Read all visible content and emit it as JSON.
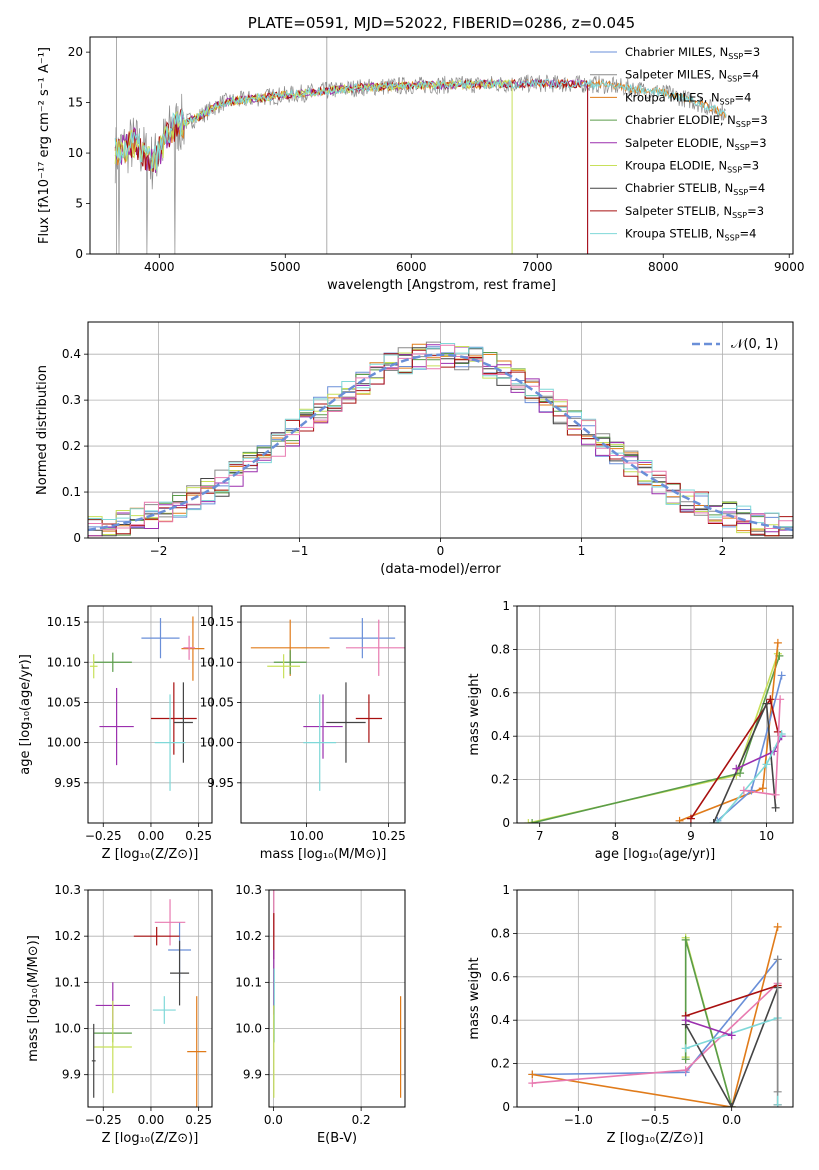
{
  "colors": {
    "chabrier_miles": "#6a8fd8",
    "salpeter_miles": "#8a8a8a",
    "kroupa_miles": "#e07b1a",
    "chabrier_elodie": "#5a9c4a",
    "salpeter_elodie": "#9b2fae",
    "kroupa_elodie": "#c8e05a",
    "chabrier_stelib": "#444444",
    "salpeter_stelib": "#a81010",
    "kroupa_stelib": "#7fd8d8",
    "pink": "#e87ab0"
  },
  "chart_data": [
    {
      "id": "spectrum",
      "type": "line",
      "title": "PLATE=0591, MJD=52022, FIBERID=0286, z=0.045",
      "xlabel": "wavelength [Angstrom, rest frame]",
      "ylabel": "Flux [fλ10⁻¹⁷ erg cm⁻² s⁻¹ A⁻¹]",
      "xlim": [
        3450,
        9030
      ],
      "ylim": [
        0,
        21.5
      ],
      "xticks": [
        4000,
        5000,
        6000,
        7000,
        8000,
        9000
      ],
      "yticks": [
        0,
        5,
        10,
        15,
        20
      ],
      "legend_position": "top-right",
      "legend": [
        {
          "label": "Chabrier MILES, N",
          "sub": "SSP",
          "tail": "=3",
          "color": "chabrier_miles"
        },
        {
          "label": "Salpeter MILES, N",
          "sub": "SSP",
          "tail": "=4",
          "color": "salpeter_miles"
        },
        {
          "label": "Kroupa MILES, N",
          "sub": "SSP",
          "tail": "=4",
          "color": "kroupa_miles"
        },
        {
          "label": "Chabrier ELODIE, N",
          "sub": "SSP",
          "tail": "=3",
          "color": "chabrier_elodie"
        },
        {
          "label": "Salpeter ELODIE, N",
          "sub": "SSP",
          "tail": "=3",
          "color": "salpeter_elodie"
        },
        {
          "label": "Kroupa ELODIE, N",
          "sub": "SSP",
          "tail": "=3",
          "color": "kroupa_elodie"
        },
        {
          "label": "Chabrier STELIB, N",
          "sub": "SSP",
          "tail": "=4",
          "color": "chabrier_stelib"
        },
        {
          "label": "Salpeter STELIB, N",
          "sub": "SSP",
          "tail": "=3",
          "color": "salpeter_stelib"
        },
        {
          "label": "Kroupa STELIB, N",
          "sub": "SSP",
          "tail": "=4",
          "color": "kroupa_stelib"
        }
      ],
      "continuum": [
        [
          3650,
          10
        ],
        [
          3800,
          11
        ],
        [
          3950,
          9
        ],
        [
          4100,
          12.5
        ],
        [
          4300,
          13.5
        ],
        [
          4500,
          15
        ],
        [
          4800,
          15.5
        ],
        [
          5200,
          16
        ],
        [
          5600,
          16.5
        ],
        [
          6000,
          16.7
        ],
        [
          6500,
          16.8
        ],
        [
          7000,
          16.9
        ],
        [
          7500,
          16.8
        ],
        [
          8000,
          16
        ],
        [
          8200,
          15.3
        ],
        [
          8500,
          13.9
        ]
      ],
      "model_ends": {
        "kroupa_elodie": 6800,
        "salpeter_stelib": 7400,
        "salpeter_elodie": 7400
      }
    },
    {
      "id": "residuals",
      "type": "step",
      "xlabel": "(data-model)/error",
      "ylabel": "Normed distribution",
      "xlim": [
        -2.5,
        2.5
      ],
      "ylim": [
        0,
        0.47
      ],
      "xticks": [
        -2,
        -1,
        0,
        1,
        2
      ],
      "yticks": [
        0.0,
        0.1,
        0.2,
        0.3,
        0.4
      ],
      "legend_position": "top-right",
      "legend_label": "𝒩(0, 1)",
      "gaussian": {
        "mu": 0,
        "sigma": 1,
        "color": "chabrier_miles"
      }
    },
    {
      "id": "age_vs_Z",
      "type": "errorbar",
      "xlabel": "Z [log₁₀(Z/Z⊙)]",
      "ylabel": "age  [log₁₀(age/yr)]",
      "xlim": [
        -0.33,
        0.32
      ],
      "ylim": [
        9.9,
        10.17
      ],
      "xticks": [
        -0.25,
        0.0,
        0.25
      ],
      "xticklabels": [
        "−0.25",
        "0.00",
        "0.25"
      ],
      "yticks": [
        9.95,
        10.0,
        10.05,
        10.1,
        10.15
      ],
      "yticklabels": [
        "9.95",
        "10.00",
        "10.05",
        "10.10",
        "10.15"
      ],
      "points": [
        {
          "x": 0.05,
          "y": 10.13,
          "xe": 0.1,
          "ye": 0.025,
          "color": "chabrier_miles"
        },
        {
          "x": 0.22,
          "y": 10.117,
          "xe": 0.06,
          "ye": 0.04,
          "color": "kroupa_miles"
        },
        {
          "x": 0.2,
          "y": 10.118,
          "xe": 0.03,
          "ye": 0.015,
          "color": "pink"
        },
        {
          "x": -0.18,
          "y": 10.02,
          "xe": 0.09,
          "ye": 0.048,
          "color": "salpeter_elodie"
        },
        {
          "x": -0.2,
          "y": 10.1,
          "xe": 0.1,
          "ye": 0.012,
          "color": "chabrier_elodie"
        },
        {
          "x": -0.3,
          "y": 10.095,
          "xe": 0.02,
          "ye": 0.015,
          "color": "kroupa_elodie"
        },
        {
          "x": 0.12,
          "y": 10.03,
          "xe": 0.12,
          "ye": 0.045,
          "color": "salpeter_stelib"
        },
        {
          "x": 0.17,
          "y": 10.025,
          "xe": 0.05,
          "ye": 0.05,
          "color": "chabrier_stelib"
        },
        {
          "x": 0.1,
          "y": 10.0,
          "xe": 0.08,
          "ye": 0.06,
          "color": "kroupa_stelib"
        }
      ]
    },
    {
      "id": "age_vs_mass",
      "type": "errorbar",
      "xlabel": "mass [log₁₀(M/M⊙)]",
      "xlim": [
        9.8,
        10.3
      ],
      "ylim": [
        9.9,
        10.17
      ],
      "xticks": [
        10.0,
        10.25
      ],
      "xticklabels": [
        "10.00",
        "10.25"
      ],
      "yticks": [
        9.95,
        10.0,
        10.05,
        10.1,
        10.15
      ],
      "yticklabels": [
        "9.95",
        "10.00",
        "10.05",
        "10.10",
        "10.15"
      ],
      "points": [
        {
          "x": 10.17,
          "y": 10.13,
          "xe": 0.1,
          "ye": 0.025,
          "color": "chabrier_miles"
        },
        {
          "x": 9.95,
          "y": 10.118,
          "xe": 0.12,
          "ye": 0.035,
          "color": "kroupa_miles"
        },
        {
          "x": 10.22,
          "y": 10.118,
          "xe": 0.1,
          "ye": 0.035,
          "color": "pink"
        },
        {
          "x": 10.05,
          "y": 10.02,
          "xe": 0.06,
          "ye": 0.04,
          "color": "salpeter_elodie"
        },
        {
          "x": 9.95,
          "y": 10.1,
          "xe": 0.05,
          "ye": 0.015,
          "color": "chabrier_elodie"
        },
        {
          "x": 9.93,
          "y": 10.095,
          "xe": 0.05,
          "ye": 0.015,
          "color": "kroupa_elodie"
        },
        {
          "x": 10.19,
          "y": 10.03,
          "xe": 0.04,
          "ye": 0.03,
          "color": "salpeter_stelib"
        },
        {
          "x": 10.12,
          "y": 10.025,
          "xe": 0.06,
          "ye": 0.05,
          "color": "chabrier_stelib"
        },
        {
          "x": 10.04,
          "y": 10.0,
          "xe": 0.05,
          "ye": 0.06,
          "color": "kroupa_stelib"
        }
      ]
    },
    {
      "id": "weight_vs_age",
      "type": "line",
      "xlabel": "age  [log₁₀(age/yr)]",
      "ylabel": "mass weight",
      "xlim": [
        6.7,
        10.35
      ],
      "ylim": [
        0,
        1.0
      ],
      "xticks": [
        7,
        8,
        9,
        10
      ],
      "yticks": [
        0.0,
        0.2,
        0.4,
        0.6,
        0.8,
        1.0
      ],
      "series": [
        {
          "color": "kroupa_elodie",
          "x": [
            6.85,
            9.6,
            10.15
          ],
          "y": [
            0.0,
            0.22,
            0.78
          ]
        },
        {
          "color": "chabrier_elodie",
          "x": [
            6.9,
            9.65,
            10.17
          ],
          "y": [
            0.0,
            0.23,
            0.77
          ]
        },
        {
          "color": "kroupa_miles",
          "x": [
            8.85,
            9.95,
            10.15
          ],
          "y": [
            0.01,
            0.16,
            0.83
          ]
        },
        {
          "color": "chabrier_miles",
          "x": [
            9.35,
            9.8,
            10.2
          ],
          "y": [
            0.01,
            0.15,
            0.68
          ]
        },
        {
          "color": "salpeter_stelib",
          "x": [
            9.0,
            10.05,
            10.15
          ],
          "y": [
            0.02,
            0.57,
            0.42
          ]
        },
        {
          "color": "chabrier_stelib",
          "x": [
            9.3,
            10.0,
            10.12
          ],
          "y": [
            0.0,
            0.55,
            0.07
          ]
        },
        {
          "color": "salpeter_elodie",
          "x": [
            9.6,
            10.1,
            10.2
          ],
          "y": [
            0.25,
            0.33,
            0.4
          ]
        },
        {
          "color": "kroupa_stelib",
          "x": [
            9.35,
            10.0,
            10.2
          ],
          "y": [
            0.0,
            0.27,
            0.41
          ]
        },
        {
          "color": "pink",
          "x": [
            9.7,
            10.12,
            10.18
          ],
          "y": [
            0.15,
            0.13,
            0.57
          ]
        }
      ]
    },
    {
      "id": "mass_vs_Z",
      "type": "errorbar",
      "xlabel": "Z [log₁₀(Z/Z⊙)]",
      "ylabel": "mass [log₁₀(M/M⊙)]",
      "xlim": [
        -0.33,
        0.32
      ],
      "ylim": [
        9.83,
        10.3
      ],
      "xticks": [
        -0.25,
        0.0,
        0.25
      ],
      "xticklabels": [
        "−0.25",
        "0.00",
        "0.25"
      ],
      "yticks": [
        9.9,
        10.0,
        10.1,
        10.2,
        10.3
      ],
      "yticklabels": [
        "9.9",
        "10.0",
        "10.1",
        "10.2",
        "10.3"
      ],
      "points": [
        {
          "x": 0.15,
          "y": 10.17,
          "xe": 0.06,
          "ye": 0.06,
          "color": "chabrier_miles"
        },
        {
          "x": 0.24,
          "y": 9.95,
          "xe": 0.05,
          "ye": 0.12,
          "color": "kroupa_miles"
        },
        {
          "x": 0.1,
          "y": 10.23,
          "xe": 0.08,
          "ye": 0.05,
          "color": "pink"
        },
        {
          "x": -0.2,
          "y": 10.05,
          "xe": 0.09,
          "ye": 0.05,
          "color": "salpeter_elodie"
        },
        {
          "x": -0.2,
          "y": 9.99,
          "xe": 0.1,
          "ye": 0.02,
          "color": "chabrier_elodie"
        },
        {
          "x": -0.2,
          "y": 9.96,
          "xe": 0.1,
          "ye": 0.1,
          "color": "kroupa_elodie"
        },
        {
          "x": 0.03,
          "y": 10.2,
          "xe": 0.12,
          "ye": 0.02,
          "color": "salpeter_stelib"
        },
        {
          "x": 0.15,
          "y": 10.12,
          "xe": 0.05,
          "ye": 0.07,
          "color": "chabrier_stelib"
        },
        {
          "x": 0.07,
          "y": 10.04,
          "xe": 0.06,
          "ye": 0.03,
          "color": "kroupa_stelib"
        },
        {
          "x": -0.3,
          "y": 9.93,
          "xe": 0.01,
          "ye": 0.08,
          "color": "chabrier_stelib"
        }
      ]
    },
    {
      "id": "mass_vs_EBV",
      "type": "errorbar",
      "xlabel": "E(B-V)",
      "xlim": [
        -0.01,
        0.3
      ],
      "ylim": [
        9.83,
        10.3
      ],
      "xticks": [
        0.0,
        0.2
      ],
      "xticklabels": [
        "0.0",
        "0.2"
      ],
      "yticks": [
        9.9,
        10.0,
        10.1,
        10.2,
        10.3
      ],
      "yticklabels": [
        "9.9",
        "10.0",
        "10.1",
        "10.2",
        "10.3"
      ],
      "points": [
        {
          "x": 0.001,
          "y": 10.25,
          "xe": 0.0,
          "ye": 0.05,
          "color": "pink"
        },
        {
          "x": 0.001,
          "y": 10.2,
          "xe": 0.0,
          "ye": 0.05,
          "color": "salpeter_stelib"
        },
        {
          "x": 0.001,
          "y": 10.1,
          "xe": 0.0,
          "ye": 0.07,
          "color": "salpeter_elodie"
        },
        {
          "x": 0.002,
          "y": 10.05,
          "xe": 0.0,
          "ye": 0.08,
          "color": "kroupa_stelib"
        },
        {
          "x": 0.001,
          "y": 9.95,
          "xe": 0.0,
          "ye": 0.1,
          "color": "kroupa_elodie"
        },
        {
          "x": 0.29,
          "y": 9.96,
          "xe": 0.0,
          "ye": 0.11,
          "color": "kroupa_miles"
        }
      ]
    },
    {
      "id": "weight_vs_Z",
      "type": "line",
      "xlabel": "Z [log₁₀(Z/Z⊙)]",
      "ylabel": "mass weight",
      "xlim": [
        -1.4,
        0.4
      ],
      "ylim": [
        0,
        1.0
      ],
      "xticks": [
        -1.0,
        -0.5,
        0.0
      ],
      "xticklabels": [
        "−1.0",
        "−0.5",
        "0.0"
      ],
      "yticks": [
        0.0,
        0.2,
        0.4,
        0.6,
        0.8,
        1.0
      ],
      "series": [
        {
          "color": "chabrier_miles",
          "x": [
            -1.3,
            -0.3,
            0.3
          ],
          "y": [
            0.15,
            0.16,
            0.68
          ]
        },
        {
          "color": "kroupa_miles",
          "x": [
            -1.3,
            0.0,
            0.3
          ],
          "y": [
            0.15,
            0.0,
            0.83
          ]
        },
        {
          "color": "pink",
          "x": [
            -1.3,
            -0.3,
            0.3
          ],
          "y": [
            0.11,
            0.17,
            0.57
          ]
        },
        {
          "color": "kroupa_elodie",
          "x": [
            -0.3,
            -0.3,
            0.0
          ],
          "y": [
            0.23,
            0.78,
            0.0
          ]
        },
        {
          "color": "chabrier_elodie",
          "x": [
            -0.3,
            -0.3,
            0.0
          ],
          "y": [
            0.22,
            0.77,
            0.0
          ]
        },
        {
          "color": "salpeter_stelib",
          "x": [
            -0.3,
            0.3,
            0.3
          ],
          "y": [
            0.42,
            0.56,
            0.01
          ]
        },
        {
          "color": "chabrier_stelib",
          "x": [
            -0.3,
            0.0,
            0.3
          ],
          "y": [
            0.38,
            0.0,
            0.55
          ]
        },
        {
          "color": "kroupa_stelib",
          "x": [
            -0.3,
            0.3,
            0.3
          ],
          "y": [
            0.27,
            0.41,
            0.01
          ]
        },
        {
          "color": "salpeter_elodie",
          "x": [
            -0.3,
            0.0
          ],
          "y": [
            0.4,
            0.33
          ]
        },
        {
          "color": "salpeter_miles",
          "x": [
            0.3,
            0.3
          ],
          "y": [
            0.07,
            0.68
          ]
        }
      ]
    }
  ]
}
